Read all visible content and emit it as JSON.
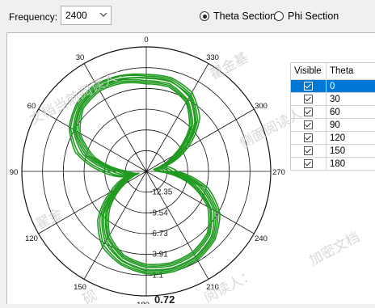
{
  "toolbar": {
    "frequency_label": "Frequency:",
    "frequency_value": "2400",
    "theta_section_label": "Theta Section",
    "phi_section_label": "Phi Section",
    "selected_section": "theta"
  },
  "table": {
    "headers": [
      "Visible",
      "Theta"
    ],
    "rows": [
      {
        "theta": "0",
        "visible": true,
        "selected": true
      },
      {
        "theta": "30",
        "visible": true,
        "selected": false
      },
      {
        "theta": "60",
        "visible": true,
        "selected": false
      },
      {
        "theta": "90",
        "visible": true,
        "selected": false
      },
      {
        "theta": "120",
        "visible": true,
        "selected": false
      },
      {
        "theta": "150",
        "visible": true,
        "selected": false
      },
      {
        "theta": "180",
        "visible": true,
        "selected": false
      }
    ]
  },
  "chart_data": {
    "type": "polar",
    "angle_labels": [
      "0",
      "30",
      "60",
      "90",
      "120",
      "150",
      "180",
      "210",
      "240",
      "270",
      "300",
      "330"
    ],
    "radial_tick_labels": [
      "-12.35",
      "-9.54",
      "-6.73",
      "-3.91",
      "-1.1",
      "0.72"
    ],
    "radial_min": -15.16,
    "radial_max": 0.72,
    "series_color": "#1f9a1f",
    "series": [
      {
        "values": [
          -3.2,
          -3.0,
          -2.8,
          -3.3,
          -4.6,
          -7.2,
          -11.5,
          -13.5,
          -11.0,
          -7.5,
          -5.0,
          -3.4,
          -2.6,
          -2.4,
          -2.6,
          -3.4,
          -5.2,
          -8.3,
          -12.8,
          -13.5,
          -10.0,
          -6.4,
          -4.2,
          -3.2
        ]
      },
      {
        "values": [
          -3.0,
          -2.6,
          -2.5,
          -2.9,
          -4.0,
          -6.2,
          -10.0,
          -12.8,
          -10.3,
          -6.8,
          -4.3,
          -3.0,
          -2.3,
          -2.1,
          -2.3,
          -3.0,
          -4.6,
          -7.5,
          -11.8,
          -13.0,
          -9.5,
          -5.9,
          -3.8,
          -3.0
        ]
      },
      {
        "values": [
          -3.6,
          -3.1,
          -2.9,
          -3.4,
          -4.8,
          -7.6,
          -12.0,
          -13.8,
          -11.4,
          -7.9,
          -5.3,
          -3.7,
          -2.9,
          -2.7,
          -2.9,
          -3.7,
          -5.6,
          -8.8,
          -13.2,
          -13.8,
          -10.5,
          -6.8,
          -4.6,
          -3.6
        ]
      },
      {
        "values": [
          -2.8,
          -2.5,
          -2.3,
          -2.7,
          -3.8,
          -5.8,
          -9.4,
          -12.4,
          -9.8,
          -6.4,
          -4.0,
          -2.8,
          -2.1,
          -1.9,
          -2.1,
          -2.8,
          -4.3,
          -7.0,
          -11.2,
          -12.6,
          -9.0,
          -5.5,
          -3.5,
          -2.8
        ]
      },
      {
        "values": [
          -4.0,
          -3.5,
          -3.3,
          -3.8,
          -5.4,
          -8.4,
          -12.8,
          -14.2,
          -12.0,
          -8.6,
          -5.8,
          -4.1,
          -3.3,
          -3.1,
          -3.3,
          -4.1,
          -6.1,
          -9.6,
          -13.8,
          -14.2,
          -11.2,
          -7.4,
          -5.0,
          -4.0
        ]
      },
      {
        "values": [
          -3.3,
          -2.9,
          -2.7,
          -3.1,
          -4.4,
          -6.8,
          -10.8,
          -13.2,
          -10.7,
          -7.2,
          -4.7,
          -3.3,
          -2.5,
          -2.3,
          -2.5,
          -3.2,
          -4.9,
          -7.9,
          -12.3,
          -13.3,
          -9.8,
          -6.2,
          -4.0,
          -3.3
        ]
      },
      {
        "values": [
          -3.8,
          -3.3,
          -3.1,
          -3.6,
          -5.1,
          -8.0,
          -12.4,
          -14.0,
          -11.7,
          -8.2,
          -5.5,
          -3.9,
          -3.1,
          -2.9,
          -3.1,
          -3.9,
          -5.8,
          -9.2,
          -13.5,
          -14.0,
          -10.8,
          -7.1,
          -4.8,
          -3.8
        ]
      }
    ]
  }
}
